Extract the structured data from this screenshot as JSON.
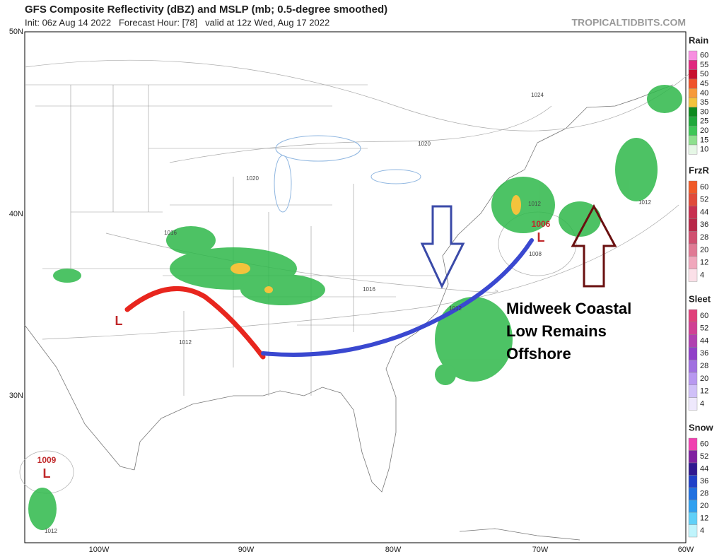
{
  "header": {
    "title": "GFS Composite Reflectivity (dBZ) and MSLP (mb; 0.5-degree smoothed)",
    "subtitle": "Init: 06z Aug 14 2022   Forecast Hour: [78]   valid at 12z Wed, Aug 17 2022",
    "credit": "TROPICALTIDBITS.COM"
  },
  "map": {
    "lat_labels": [
      "50N",
      "40N",
      "30N"
    ],
    "lon_labels": [
      "100W",
      "90W",
      "80W",
      "70W",
      "60W"
    ],
    "isobar_labels": [
      "1024",
      "1020",
      "1020",
      "1016",
      "1016",
      "1012",
      "1012",
      "1012",
      "1012",
      "1008",
      "1012"
    ],
    "lows": [
      {
        "pressure": "1006",
        "symbol": "L"
      },
      {
        "pressure": "1009",
        "symbol": "L"
      },
      {
        "symbol": "L"
      }
    ],
    "annotation": [
      "Midweek Coastal",
      "Low Remains",
      "Offshore"
    ]
  },
  "legends": [
    {
      "title": "Rain",
      "labels": [
        60,
        55,
        50,
        45,
        40,
        35,
        30,
        25,
        20,
        15,
        10
      ],
      "colors": [
        "#f78ee0",
        "#e0287f",
        "#c8102e",
        "#f0522a",
        "#f79a3a",
        "#f4c33c",
        "#0e8a1e",
        "#1fa83a",
        "#3dc656",
        "#8ee08e",
        "#e6f7e6"
      ]
    },
    {
      "title": "FrzR",
      "labels": [
        60,
        52,
        44,
        36,
        28,
        20,
        12,
        4
      ],
      "colors": [
        "#f05a28",
        "#e04a3a",
        "#c83050",
        "#b82848",
        "#d05070",
        "#e07a94",
        "#f0a8bc",
        "#fbe0e8"
      ]
    },
    {
      "title": "Sleet",
      "labels": [
        60,
        52,
        44,
        36,
        28,
        20,
        12,
        4
      ],
      "colors": [
        "#e0407a",
        "#d04094",
        "#b040b0",
        "#9040c8",
        "#a070e0",
        "#b898f0",
        "#d0c0f8",
        "#eee8fc"
      ]
    },
    {
      "title": "Snow",
      "labels": [
        60,
        52,
        44,
        36,
        28,
        20,
        12,
        4
      ],
      "colors": [
        "#f040b0",
        "#8020a0",
        "#301890",
        "#2040c8",
        "#2070e0",
        "#30a0f0",
        "#60d0f8",
        "#c0f4fc"
      ]
    }
  ]
}
